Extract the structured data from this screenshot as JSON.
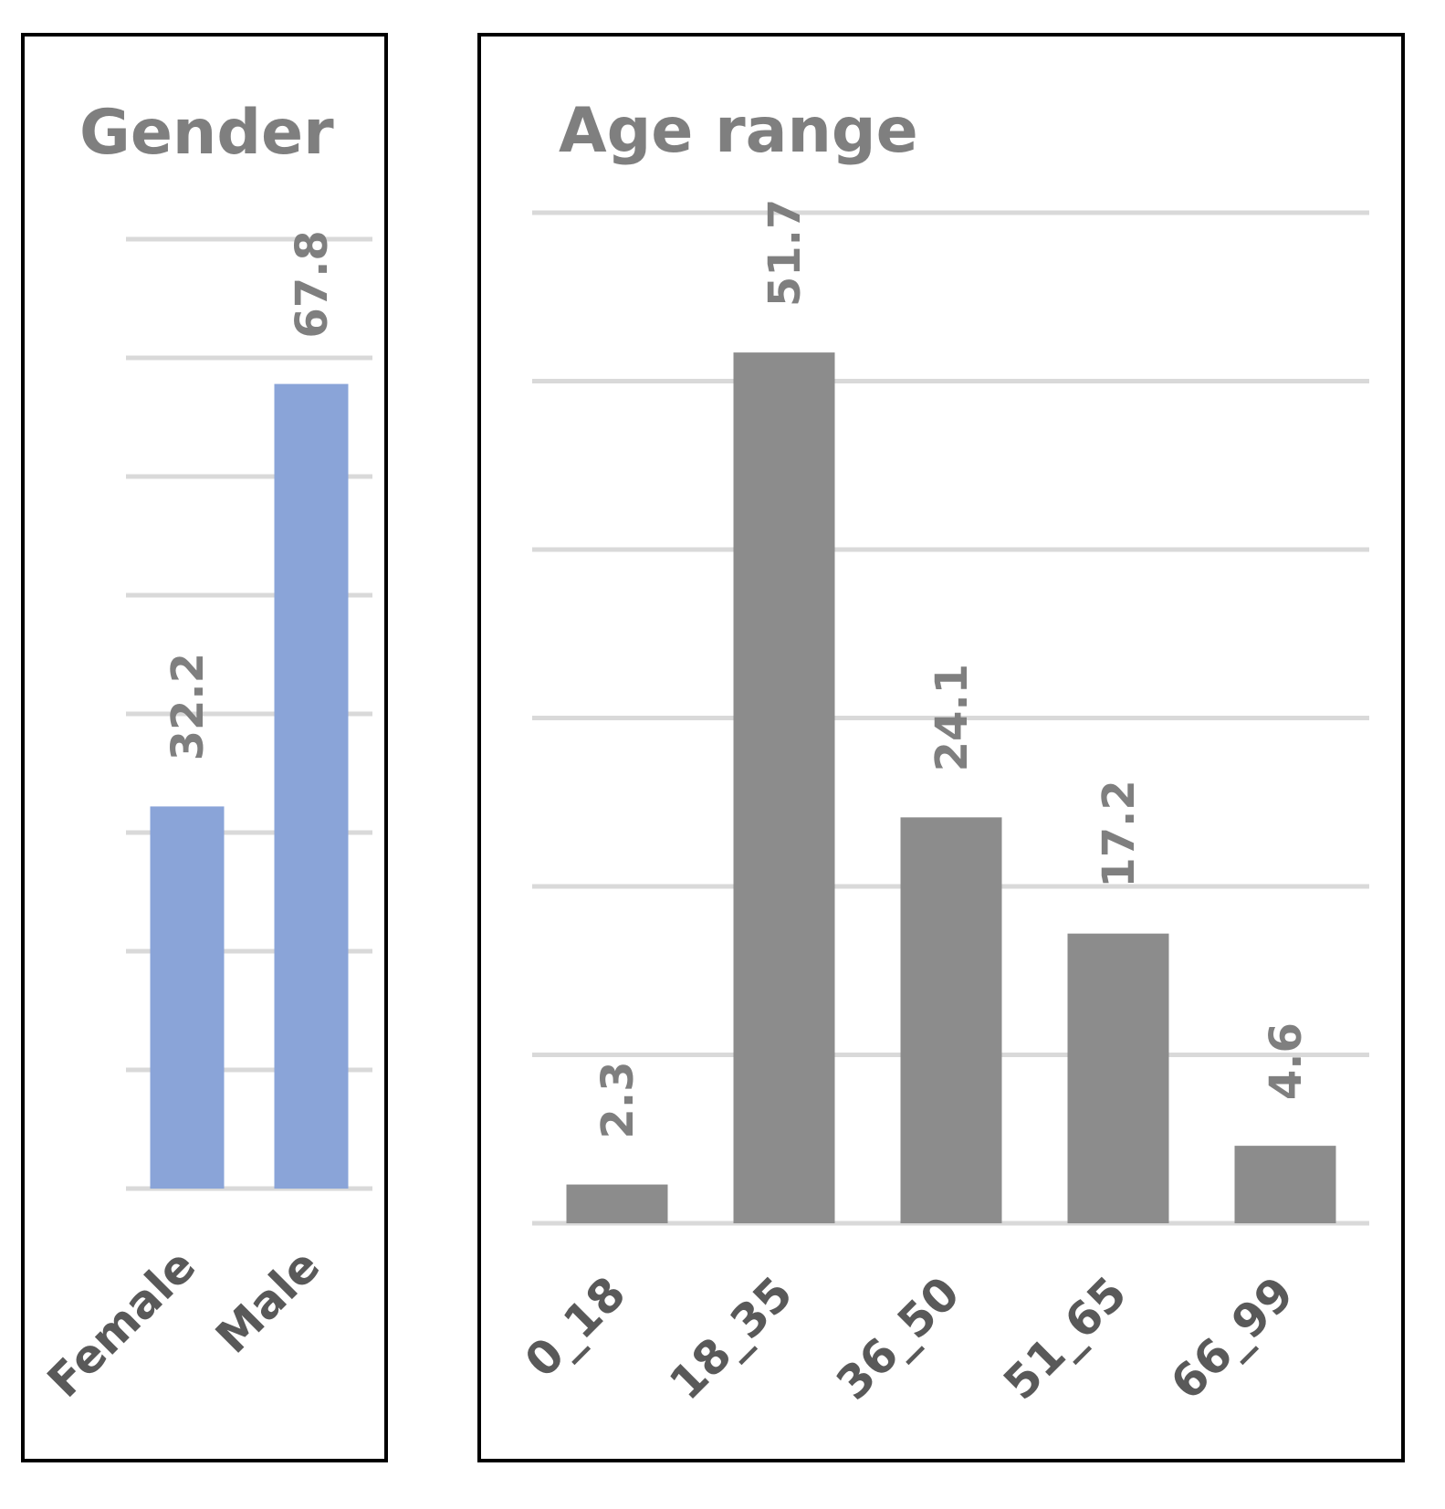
{
  "colors": {
    "gender_bar": "#8aa4d8",
    "age_bar": "#8c8c8c",
    "gridline": "#d9d9d9",
    "text": "#7f7f7f",
    "category_text": "#595959",
    "frame": "#000000"
  },
  "chart_data": [
    {
      "type": "bar",
      "title": "Gender",
      "xlabel": "",
      "ylabel": "",
      "categories": [
        "Female",
        "Male"
      ],
      "values": [
        32.2,
        67.8
      ],
      "data_labels": [
        "32.2",
        "67.8"
      ],
      "ylim": [
        0,
        80
      ],
      "y_gridline_step": 10,
      "y_tick_labels_shown": false,
      "grid": true,
      "legend": "none"
    },
    {
      "type": "bar",
      "title": "Age range",
      "xlabel": "",
      "ylabel": "",
      "categories": [
        "0_18",
        "18_35",
        "36_50",
        "51_65",
        "66_99"
      ],
      "values": [
        2.3,
        51.7,
        24.1,
        17.2,
        4.6
      ],
      "data_labels": [
        "2.3",
        "51.7",
        "24.1",
        "17.2",
        "4.6"
      ],
      "ylim": [
        0,
        60
      ],
      "y_gridline_step": 10,
      "y_tick_labels_shown": false,
      "grid": true,
      "legend": "none"
    }
  ]
}
